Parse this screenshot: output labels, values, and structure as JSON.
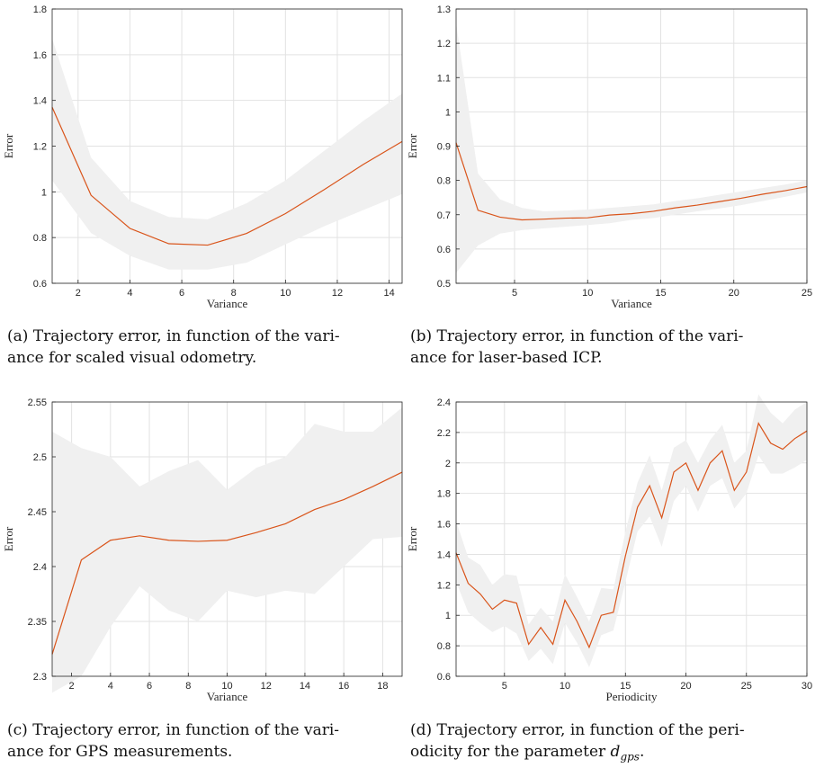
{
  "chart_data": [
    {
      "type": "line",
      "panel": "a",
      "xlabel": "Variance",
      "ylabel": "Error",
      "xlim": [
        1,
        14.5
      ],
      "ylim": [
        0.6,
        1.8
      ],
      "xticks": [
        2,
        4,
        6,
        8,
        10,
        12,
        14
      ],
      "yticks": [
        0.6,
        0.8,
        1,
        1.2,
        1.4,
        1.6,
        1.8
      ],
      "grid": true,
      "series": [
        {
          "x": [
            1,
            2.5,
            4,
            5.5,
            7,
            8.5,
            10,
            11.5,
            13,
            14.5
          ],
          "values": [
            1.37,
            0.985,
            0.84,
            0.773,
            0.767,
            0.818,
            0.905,
            1.01,
            1.12,
            1.22
          ],
          "lower": [
            1.05,
            0.82,
            0.72,
            0.66,
            0.66,
            0.69,
            0.77,
            0.85,
            0.92,
            0.99
          ],
          "upper": [
            1.67,
            1.15,
            0.96,
            0.89,
            0.88,
            0.95,
            1.05,
            1.18,
            1.31,
            1.43
          ]
        }
      ],
      "caption": "(a) Trajectory error, in function of the vari-\nance for scaled visual odometry."
    },
    {
      "type": "line",
      "panel": "b",
      "xlabel": "Variance",
      "ylabel": "Error",
      "xlim": [
        1,
        25
      ],
      "ylim": [
        0.5,
        1.3
      ],
      "xticks": [
        5,
        10,
        15,
        20,
        25
      ],
      "yticks": [
        0.5,
        0.6,
        0.7,
        0.8,
        0.9,
        1,
        1.1,
        1.2,
        1.3
      ],
      "grid": true,
      "series": [
        {
          "x": [
            1,
            2.5,
            4,
            5.5,
            7,
            8.5,
            10,
            11.5,
            13,
            14.5,
            16,
            17.5,
            19,
            20.5,
            22,
            23.5,
            25
          ],
          "values": [
            0.91,
            0.713,
            0.693,
            0.685,
            0.687,
            0.69,
            0.691,
            0.699,
            0.703,
            0.71,
            0.72,
            0.728,
            0.738,
            0.748,
            0.76,
            0.77,
            0.782
          ],
          "lower": [
            0.53,
            0.61,
            0.645,
            0.655,
            0.66,
            0.665,
            0.67,
            0.675,
            0.685,
            0.69,
            0.7,
            0.71,
            0.718,
            0.728,
            0.74,
            0.752,
            0.765
          ],
          "upper": [
            1.26,
            0.82,
            0.745,
            0.72,
            0.71,
            0.712,
            0.715,
            0.72,
            0.725,
            0.73,
            0.74,
            0.748,
            0.758,
            0.768,
            0.778,
            0.788,
            0.8
          ]
        }
      ],
      "caption": "(b) Trajectory error, in function of the vari-\nance for laser-based ICP."
    },
    {
      "type": "line",
      "panel": "c",
      "xlabel": "Variance",
      "ylabel": "Error",
      "xlim": [
        1,
        19
      ],
      "ylim": [
        2.3,
        2.55
      ],
      "xticks": [
        2,
        4,
        6,
        8,
        10,
        12,
        14,
        16,
        18
      ],
      "yticks": [
        2.3,
        2.35,
        2.4,
        2.45,
        2.5,
        2.55
      ],
      "grid": true,
      "series": [
        {
          "x": [
            1,
            2.5,
            4,
            5.5,
            7,
            8.5,
            10,
            11.5,
            13,
            14.5,
            16,
            17.5,
            19
          ],
          "values": [
            2.32,
            2.406,
            2.424,
            2.428,
            2.424,
            2.423,
            2.424,
            2.431,
            2.439,
            2.452,
            2.461,
            2.473,
            2.486
          ],
          "lower": [
            2.285,
            2.3,
            2.345,
            2.382,
            2.36,
            2.35,
            2.378,
            2.372,
            2.378,
            2.375,
            2.4,
            2.425,
            2.427
          ],
          "upper": [
            2.523,
            2.508,
            2.5,
            2.473,
            2.487,
            2.497,
            2.47,
            2.49,
            2.5,
            2.53,
            2.523,
            2.523,
            2.545
          ]
        }
      ],
      "caption": "(c) Trajectory error, in function of the vari-\nance for GPS measurements."
    },
    {
      "type": "line",
      "panel": "d",
      "xlabel": "Periodicity",
      "ylabel": "Error",
      "xlim": [
        1,
        30
      ],
      "ylim": [
        0.6,
        2.4
      ],
      "xticks": [
        5,
        10,
        15,
        20,
        25,
        30
      ],
      "yticks": [
        0.6,
        0.8,
        1,
        1.2,
        1.4,
        1.6,
        1.8,
        2,
        2.2,
        2.4
      ],
      "grid": true,
      "series": [
        {
          "x": [
            1,
            2,
            3,
            4,
            5,
            6,
            7,
            8,
            9,
            10,
            11,
            12,
            13,
            14,
            15,
            16,
            17,
            18,
            19,
            20,
            21,
            22,
            23,
            24,
            25,
            26,
            27,
            28,
            29,
            30
          ],
          "values": [
            1.41,
            1.21,
            1.14,
            1.04,
            1.1,
            1.08,
            0.81,
            0.92,
            0.81,
            1.1,
            0.96,
            0.79,
            1,
            1.02,
            1.39,
            1.71,
            1.85,
            1.64,
            1.94,
            2,
            1.82,
            2,
            2.08,
            1.82,
            1.94,
            2.26,
            2.13,
            2.09,
            2.16,
            2.21
          ],
          "lower": [
            1.22,
            1.02,
            0.95,
            0.89,
            0.93,
            0.88,
            0.7,
            0.78,
            0.68,
            0.95,
            0.82,
            0.66,
            0.87,
            0.9,
            1.22,
            1.55,
            1.65,
            1.45,
            1.75,
            1.85,
            1.68,
            1.85,
            1.9,
            1.7,
            1.8,
            2.05,
            1.93,
            1.93,
            1.97,
            2.02
          ],
          "upper": [
            1.62,
            1.38,
            1.33,
            1.2,
            1.27,
            1.26,
            0.94,
            1.05,
            0.96,
            1.27,
            1.12,
            0.96,
            1.18,
            1.17,
            1.55,
            1.87,
            2.05,
            1.82,
            2.1,
            2.15,
            2,
            2.15,
            2.25,
            2.0,
            2.08,
            2.45,
            2.33,
            2.26,
            2.35,
            2.4
          ]
        }
      ],
      "caption": "(d) Trajectory error, in function of the peri-\nodicity for the parameter "
    }
  ],
  "caption_math": "d",
  "caption_math_sub": "gps",
  "caption_end": ".",
  "colors": {
    "line": "#d9541a",
    "band": "#f0f0f0",
    "grid": "#e2e2e2",
    "axis": "#262626"
  }
}
